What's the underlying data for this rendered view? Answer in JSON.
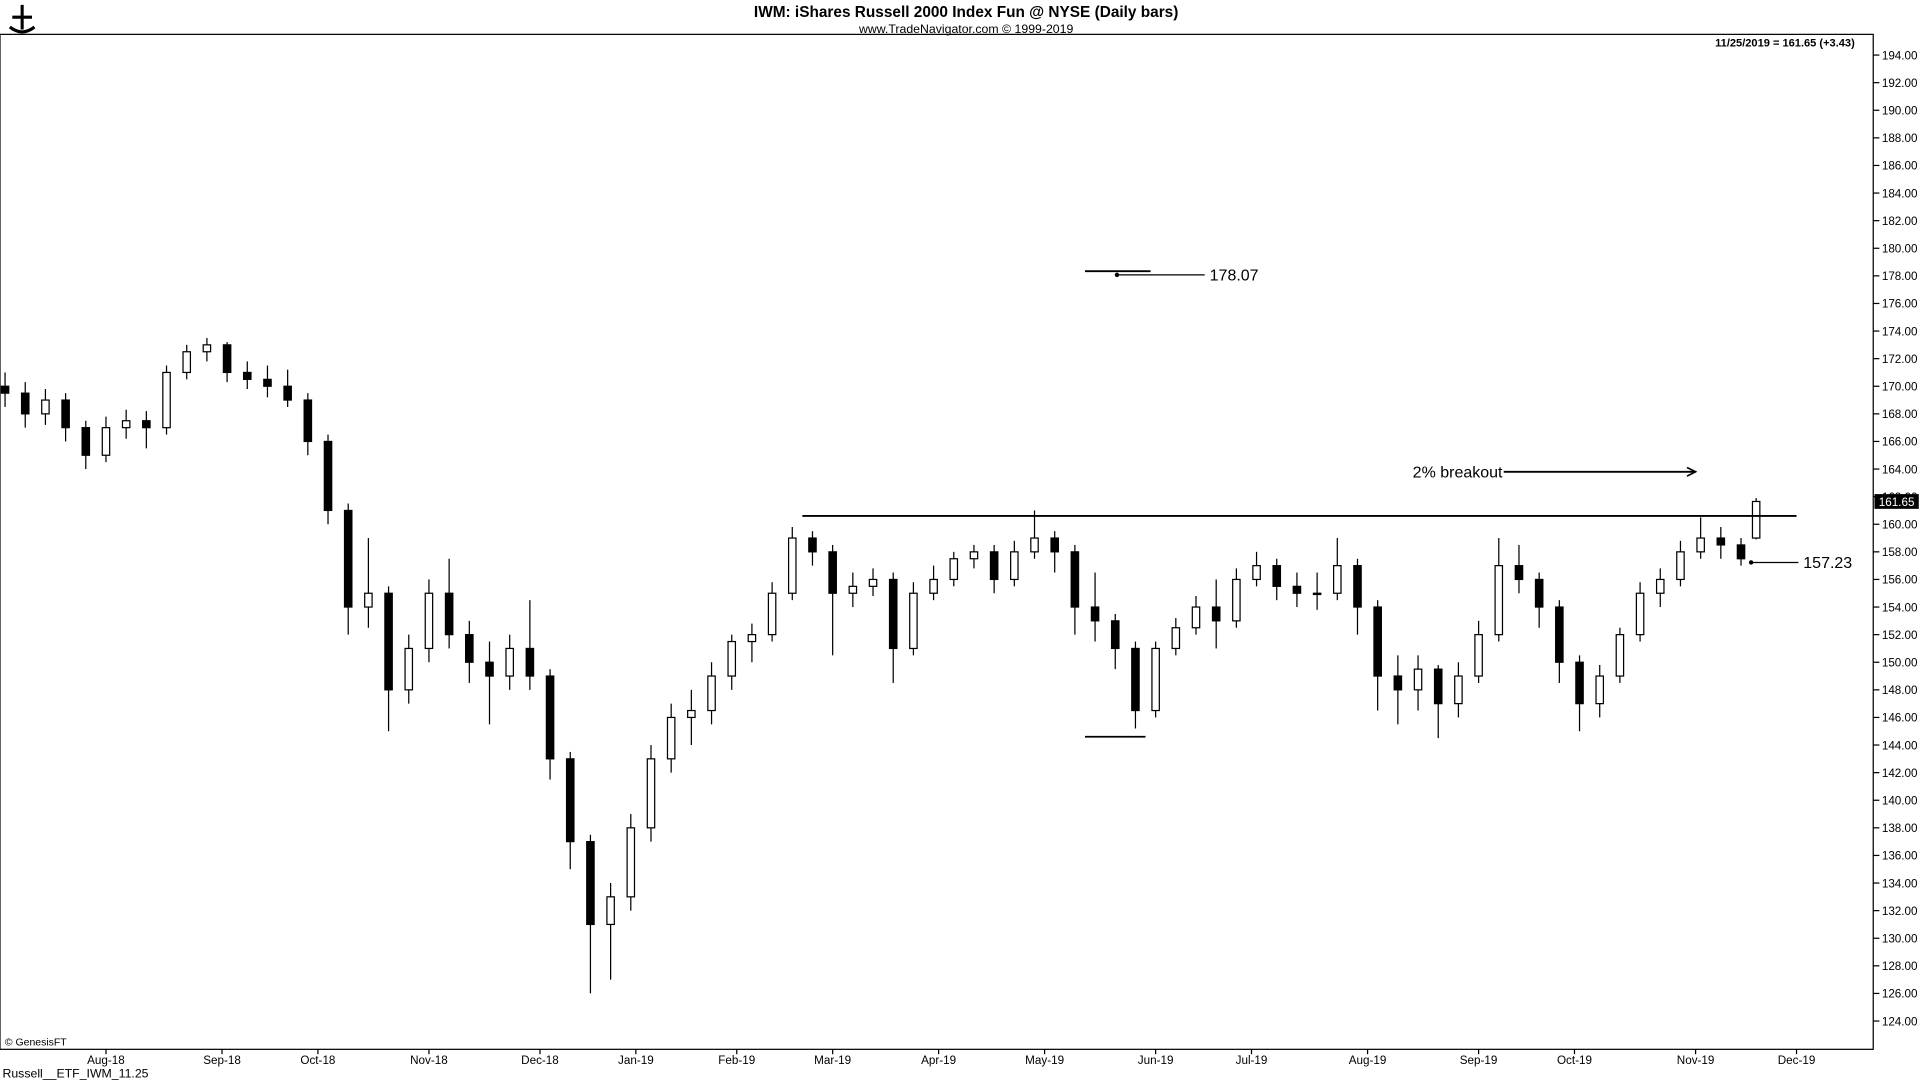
{
  "chart_data": {
    "type": "candlestick",
    "title": "IWM:  iShares Russell 2000 Index Fun @ NYSE  (Daily bars)",
    "subtitle": "www.TradeNavigator.com © 1999-2019",
    "last_label": "11/25/2019 = 161.65 (+3.43)",
    "last_price": 161.65,
    "copyright": "© GenesisFT",
    "footer": "Russell__ETF_IWM_11.25",
    "x": [
      0,
      4,
      8,
      12,
      16,
      20,
      24,
      28,
      32,
      36,
      40,
      44,
      48,
      52,
      56,
      60,
      64,
      68,
      72,
      76,
      80,
      84,
      88,
      92,
      96,
      100,
      104,
      108,
      112,
      116,
      120,
      124,
      128,
      132,
      136,
      140,
      144,
      148,
      152,
      156,
      160,
      164,
      168,
      172,
      176,
      180,
      184,
      188,
      192,
      196,
      200,
      204,
      208,
      212,
      216,
      220,
      224,
      228,
      232,
      236,
      240,
      244,
      248,
      252,
      256,
      260,
      264,
      268,
      272,
      276,
      280,
      284,
      288,
      292,
      296,
      300,
      304,
      308,
      312,
      316,
      320,
      324,
      328,
      332,
      336,
      340,
      344,
      347
    ],
    "open": [
      170,
      169.5,
      168,
      169,
      167,
      165,
      167,
      167.5,
      167,
      171,
      172.5,
      173,
      171,
      170.5,
      170,
      169,
      166,
      161,
      154,
      155,
      148,
      151,
      155,
      152,
      150,
      149,
      151,
      149,
      143,
      137,
      131,
      133,
      138,
      143,
      146,
      146.5,
      149,
      151.5,
      152,
      155,
      159,
      158,
      155,
      155.5,
      156,
      151,
      155,
      156,
      157.5,
      158,
      156,
      158,
      159,
      158,
      154,
      153,
      151,
      146.5,
      151,
      152.5,
      154,
      153,
      156,
      157,
      155.5,
      155,
      155,
      157,
      154,
      149,
      148,
      149.5,
      147,
      149,
      152,
      157,
      156,
      154,
      150,
      147,
      149,
      152,
      155,
      156,
      158,
      159,
      158.5,
      159
    ],
    "high": [
      171,
      170.3,
      169.8,
      169.5,
      167.5,
      167.8,
      168.3,
      168.2,
      171.5,
      173,
      173.5,
      173.2,
      171.8,
      171.5,
      171.2,
      169.5,
      166.5,
      161.5,
      159,
      155.5,
      152,
      156,
      157.5,
      153,
      151.5,
      152,
      154.5,
      149.5,
      143.5,
      137.5,
      134,
      139,
      144,
      147,
      148,
      150,
      152,
      152.8,
      155.8,
      159.8,
      159.5,
      158.5,
      156.5,
      156.8,
      156.5,
      155.8,
      157,
      158,
      158.5,
      158.5,
      158.8,
      161,
      159.5,
      158.5,
      156.5,
      153.5,
      151.5,
      151.5,
      153.2,
      154.8,
      156,
      156.8,
      158,
      157.5,
      156.5,
      156.5,
      159,
      157.5,
      154.5,
      150.5,
      150.5,
      149.8,
      150,
      153,
      159,
      158.5,
      156.5,
      154.5,
      150.5,
      149.8,
      152.5,
      155.8,
      156.8,
      158.8,
      160.5,
      159.8,
      159,
      161.9
    ],
    "low": [
      168.5,
      167,
      167.2,
      166,
      164,
      164.5,
      166.2,
      165.5,
      166.5,
      170.5,
      171.8,
      170.3,
      169.8,
      169.2,
      168.5,
      165,
      160,
      152,
      152.5,
      145,
      147,
      150,
      151,
      148.5,
      145.5,
      148,
      148,
      141.5,
      135,
      126,
      127,
      132,
      137,
      142,
      144,
      145.5,
      148,
      150,
      151.5,
      154.5,
      157,
      150.5,
      154,
      154.8,
      148.5,
      150.5,
      154.5,
      155.5,
      156.8,
      155,
      155.5,
      157.5,
      156.5,
      152,
      151.5,
      149.5,
      145.2,
      146,
      150.5,
      152,
      151,
      152.5,
      155.5,
      154.5,
      154,
      153.8,
      154.5,
      152,
      146.5,
      145.5,
      146.5,
      144.5,
      146,
      148.5,
      151.5,
      155,
      152.5,
      148.5,
      145,
      146,
      148.5,
      151.5,
      154,
      155.5,
      157.5,
      157.5,
      157,
      158.9
    ],
    "close": [
      169.5,
      168,
      169,
      167,
      165,
      167,
      167.5,
      167,
      171,
      172.5,
      173,
      171,
      170.5,
      170,
      169,
      166,
      161,
      154,
      155,
      148,
      151,
      155,
      152,
      150,
      149,
      151,
      149,
      143,
      137,
      131,
      133,
      138,
      143,
      146,
      146.5,
      149,
      151.5,
      152,
      155,
      159,
      158,
      155,
      155.5,
      156,
      151,
      155,
      156,
      157.5,
      158,
      156,
      158,
      159,
      158,
      154,
      153,
      151,
      146.5,
      151,
      152.5,
      154,
      153,
      156,
      157,
      155.5,
      155,
      155,
      157,
      154,
      149,
      148,
      149.5,
      147,
      149,
      152,
      157,
      156,
      154,
      150,
      147,
      149,
      152,
      155,
      156,
      158,
      159,
      158.5,
      157.5,
      161.65
    ],
    "xlim": [
      -1,
      370.2
    ],
    "xticks": [
      {
        "value": 20,
        "label": "Aug-18"
      },
      {
        "value": 43,
        "label": "Sep-18"
      },
      {
        "value": 62,
        "label": "Oct-18"
      },
      {
        "value": 84,
        "label": "Nov-18"
      },
      {
        "value": 106,
        "label": "Dec-18"
      },
      {
        "value": 125,
        "label": "Jan-19"
      },
      {
        "value": 145,
        "label": "Feb-19"
      },
      {
        "value": 164,
        "label": "Mar-19"
      },
      {
        "value": 185,
        "label": "Apr-19"
      },
      {
        "value": 206,
        "label": "May-19"
      },
      {
        "value": 228,
        "label": "Jun-19"
      },
      {
        "value": 247,
        "label": "Jul-19"
      },
      {
        "value": 270,
        "label": "Aug-19"
      },
      {
        "value": 292,
        "label": "Sep-19"
      },
      {
        "value": 311,
        "label": "Oct-19"
      },
      {
        "value": 335,
        "label": "Nov-19"
      },
      {
        "value": 355,
        "label": "Dec-19"
      }
    ],
    "ylim": [
      121.95,
      195.5
    ],
    "yticks": [
      {
        "value": 124,
        "label": "124.00"
      },
      {
        "value": 126,
        "label": "126.00"
      },
      {
        "value": 128,
        "label": "128.00"
      },
      {
        "value": 130,
        "label": "130.00"
      },
      {
        "value": 132,
        "label": "132.00"
      },
      {
        "value": 134,
        "label": "134.00"
      },
      {
        "value": 136,
        "label": "136.00"
      },
      {
        "value": 138,
        "label": "138.00"
      },
      {
        "value": 140,
        "label": "140.00"
      },
      {
        "value": 142,
        "label": "142.00"
      },
      {
        "value": 144,
        "label": "144.00"
      },
      {
        "value": 146,
        "label": "146.00"
      },
      {
        "value": 148,
        "label": "148.00"
      },
      {
        "value": 150,
        "label": "150.00"
      },
      {
        "value": 152,
        "label": "152.00"
      },
      {
        "value": 154,
        "label": "154.00"
      },
      {
        "value": 156,
        "label": "156.00"
      },
      {
        "value": 158,
        "label": "158.00"
      },
      {
        "value": 160,
        "label": "160.00"
      },
      {
        "value": 162,
        "label": "162.00"
      },
      {
        "value": 164,
        "label": "164.00"
      },
      {
        "value": 166,
        "label": "166.00"
      },
      {
        "value": 168,
        "label": "168.00"
      },
      {
        "value": 170,
        "label": "170.00"
      },
      {
        "value": 172,
        "label": "172.00"
      },
      {
        "value": 174,
        "label": "174.00"
      },
      {
        "value": 176,
        "label": "176.00"
      },
      {
        "value": 178,
        "label": "178.00"
      },
      {
        "value": 180,
        "label": "180.00"
      },
      {
        "value": 182,
        "label": "182.00"
      },
      {
        "value": 184,
        "label": "184.00"
      },
      {
        "value": 186,
        "label": "186.00"
      },
      {
        "value": 188,
        "label": "188.00"
      },
      {
        "value": 190,
        "label": "190.00"
      },
      {
        "value": 192,
        "label": "192.00"
      },
      {
        "value": 194,
        "label": "194.00"
      }
    ],
    "resistance": {
      "y": 160.6,
      "x": [
        158,
        355
      ]
    },
    "target": {
      "y": 178.07,
      "x": [
        214,
        227
      ]
    },
    "support": {
      "y": 144.6,
      "x": [
        214,
        226
      ]
    },
    "stop": {
      "y": 157.23,
      "x": [
        346,
        350
      ]
    },
    "breakout": {
      "label": "2% breakout",
      "y": 163.8,
      "x": [
        296,
        335
      ]
    }
  }
}
